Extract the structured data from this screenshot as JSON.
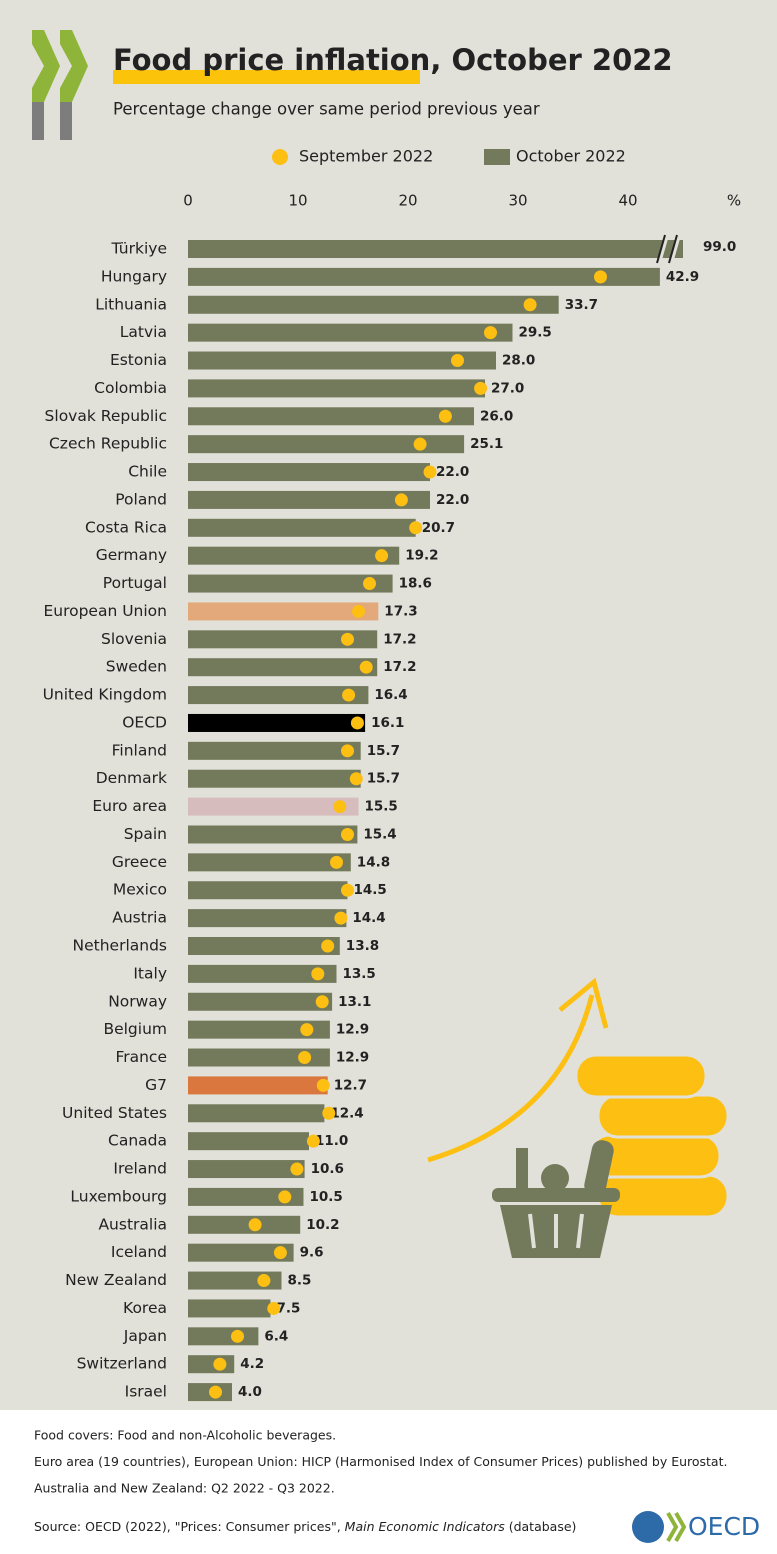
{
  "chart_data": {
    "type": "bar",
    "orientation": "horizontal",
    "title_highlight": "Food price inflation",
    "title_rest": ", October 2022",
    "subtitle": "Percentage change over same period previous year",
    "x_unit": "%",
    "xlim": [
      0,
      45
    ],
    "xticks": [
      0,
      10,
      20,
      30,
      40
    ],
    "categories": [
      "Türkiye",
      "Hungary",
      "Lithuania",
      "Latvia",
      "Estonia",
      "Colombia",
      "Slovak Republic",
      "Czech Republic",
      "Chile",
      "Poland",
      "Costa Rica",
      "Germany",
      "Portugal",
      "European Union",
      "Slovenia",
      "Sweden",
      "United Kingdom",
      "OECD",
      "Finland",
      "Denmark",
      "Euro area",
      "Spain",
      "Greece",
      "Mexico",
      "Austria",
      "Netherlands",
      "Italy",
      "Norway",
      "Belgium",
      "France",
      "G7",
      "United States",
      "Canada",
      "Ireland",
      "Luxembourg",
      "Australia",
      "Iceland",
      "New Zealand",
      "Korea",
      "Japan",
      "Switzerland",
      "Israel"
    ],
    "series": [
      {
        "name": "October 2022",
        "mark": "bar",
        "color": "#737a5c",
        "colors": [
          "#737a5c",
          "#737a5c",
          "#737a5c",
          "#737a5c",
          "#737a5c",
          "#737a5c",
          "#737a5c",
          "#737a5c",
          "#737a5c",
          "#737a5c",
          "#737a5c",
          "#737a5c",
          "#737a5c",
          "#e3a97b",
          "#737a5c",
          "#737a5c",
          "#737a5c",
          "#000000",
          "#737a5c",
          "#737a5c",
          "#d6bcbc",
          "#737a5c",
          "#737a5c",
          "#737a5c",
          "#737a5c",
          "#737a5c",
          "#737a5c",
          "#737a5c",
          "#737a5c",
          "#737a5c",
          "#d9773f",
          "#737a5c",
          "#737a5c",
          "#737a5c",
          "#737a5c",
          "#737a5c",
          "#737a5c",
          "#737a5c",
          "#737a5c",
          "#737a5c",
          "#737a5c",
          "#737a5c"
        ],
        "values": [
          99.0,
          42.9,
          33.7,
          29.5,
          28.0,
          27.0,
          26.0,
          25.1,
          22.0,
          22.0,
          20.7,
          19.2,
          18.6,
          17.3,
          17.2,
          17.2,
          16.4,
          16.1,
          15.7,
          15.7,
          15.5,
          15.4,
          14.8,
          14.5,
          14.4,
          13.8,
          13.5,
          13.1,
          12.9,
          12.9,
          12.7,
          12.4,
          11.0,
          10.6,
          10.5,
          10.2,
          9.6,
          8.5,
          7.5,
          6.4,
          4.2,
          4.0
        ],
        "value_labels": [
          "99.0",
          "42.9",
          "33.7",
          "29.5",
          "28.0",
          "27.0",
          "26.0",
          "25.1",
          "22.0",
          "22.0",
          "20.7",
          "19.2",
          "18.6",
          "17.3",
          "17.2",
          "17.2",
          "16.4",
          "16.1",
          "15.7",
          "15.7",
          "15.5",
          "15.4",
          "14.8",
          "14.5",
          "14.4",
          "13.8",
          "13.5",
          "13.1",
          "12.9",
          "12.9",
          "12.7",
          "12.4",
          "11.0",
          "10.6",
          "10.5",
          "10.2",
          "9.6",
          "8.5",
          "7.5",
          "6.4",
          "4.2",
          "4.0"
        ]
      },
      {
        "name": "September 2022",
        "mark": "dot",
        "color": "#fcbf12",
        "values": [
          null,
          37.5,
          31.1,
          27.5,
          24.5,
          26.6,
          23.4,
          21.1,
          22.0,
          19.4,
          20.7,
          17.6,
          16.5,
          15.5,
          14.5,
          16.2,
          14.6,
          15.4,
          14.5,
          15.3,
          13.8,
          14.5,
          13.5,
          14.5,
          13.9,
          12.7,
          11.8,
          12.2,
          10.8,
          10.6,
          12.3,
          12.8,
          11.4,
          9.9,
          8.8,
          6.1,
          8.4,
          6.9,
          7.8,
          4.5,
          2.9,
          2.5
        ]
      }
    ],
    "legend_order": [
      1,
      0
    ],
    "notes": [
      "Food covers: Food and non-Alcoholic beverages.",
      "Euro area (19 countries), European Union: HICP (Harmonised Index of Consumer Prices) published by Eurostat.",
      "Australia and New Zealand:  Q2 2022 - Q3 2022."
    ],
    "source_prefix": "Source: OECD (2022), \"Prices: Consumer prices\", ",
    "source_italic": "Main Economic Indicators",
    "source_suffix": " (database)",
    "logo_text": "OECD"
  }
}
